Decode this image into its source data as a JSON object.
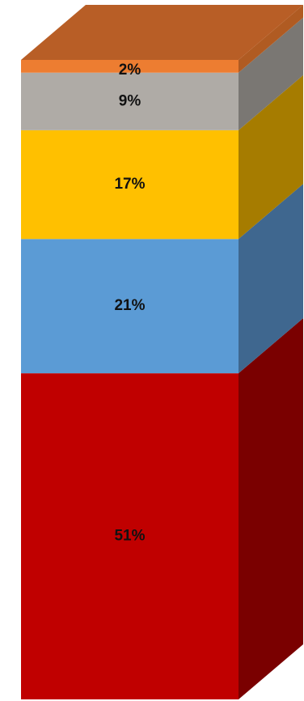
{
  "chart_data": {
    "type": "bar",
    "stacked": true,
    "three_d": true,
    "categories": [
      ""
    ],
    "series": [
      {
        "value": 51,
        "label": "51%",
        "front_color": "#c00000",
        "side_color": "#7a0000"
      },
      {
        "value": 21,
        "label": "21%",
        "front_color": "#5b9bd5",
        "side_color": "#3f678f"
      },
      {
        "value": 17,
        "label": "17%",
        "front_color": "#ffc000",
        "side_color": "#a67c00"
      },
      {
        "value": 9,
        "label": "9%",
        "front_color": "#afaba6",
        "side_color": "#7a7773"
      },
      {
        "value": 2,
        "label": "2%",
        "front_color": "#ed7d31",
        "side_color": "#b05b22"
      }
    ],
    "top_color": "#b85e26",
    "ylim": [
      0,
      100
    ],
    "grid": false,
    "legend": "none"
  }
}
